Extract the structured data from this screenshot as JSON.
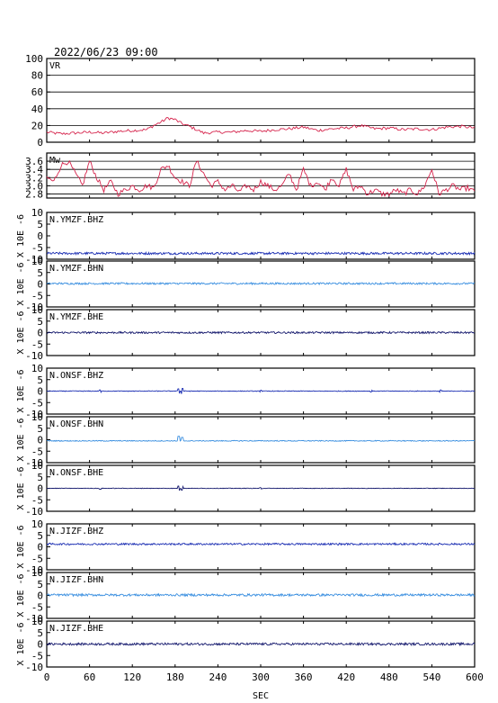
{
  "header": {
    "timestamp": "2022/06/23 09:00"
  },
  "chart_data": {
    "type": "line",
    "x_range": [
      0,
      600
    ],
    "x_ticks": [
      "0",
      "60",
      "120",
      "180",
      "240",
      "300",
      "360",
      "420",
      "480",
      "540",
      "600"
    ],
    "x_tick_values": [
      0,
      60,
      120,
      180,
      240,
      300,
      360,
      420,
      480,
      540,
      600
    ],
    "xlabel": "SEC",
    "y_unit_label": "X 10E -6",
    "panels": [
      {
        "id": "vr",
        "label": "VR",
        "ylim": [
          0,
          100
        ],
        "y_ticks": [
          "100",
          "80",
          "60",
          "40",
          "20",
          "0"
        ],
        "y_tick_values": [
          100,
          80,
          60,
          40,
          20,
          0
        ],
        "grid": true,
        "color": "#d6254d",
        "series": {
          "x": [
            0,
            20,
            40,
            60,
            80,
            100,
            120,
            140,
            150,
            160,
            170,
            180,
            190,
            200,
            210,
            220,
            240,
            260,
            280,
            300,
            320,
            340,
            360,
            380,
            400,
            420,
            440,
            460,
            480,
            500,
            520,
            540,
            560,
            580,
            600
          ],
          "y": [
            12,
            10,
            11,
            12,
            11,
            13,
            14,
            15,
            20,
            24,
            29,
            27,
            22,
            19,
            15,
            11,
            12,
            12,
            14,
            13,
            15,
            16,
            18,
            14,
            16,
            17,
            20,
            16,
            17,
            15,
            16,
            15,
            18,
            19,
            17
          ]
        }
      },
      {
        "id": "mw",
        "label": "Mw",
        "ylim": [
          2.7,
          3.8
        ],
        "y_ticks": [
          "3.6",
          "3.4",
          "3.2",
          "3.0",
          "2.8"
        ],
        "y_tick_values": [
          3.6,
          3.4,
          3.2,
          3.0,
          2.8
        ],
        "grid": true,
        "color": "#d6254d",
        "series": {
          "x": [
            0,
            10,
            20,
            30,
            40,
            50,
            60,
            70,
            80,
            90,
            100,
            110,
            120,
            130,
            140,
            150,
            160,
            170,
            180,
            190,
            200,
            210,
            220,
            230,
            240,
            250,
            260,
            270,
            280,
            290,
            300,
            310,
            320,
            330,
            340,
            350,
            360,
            370,
            380,
            390,
            400,
            410,
            420,
            430,
            440,
            450,
            460,
            470,
            480,
            490,
            500,
            510,
            520,
            530,
            540,
            550,
            560,
            570,
            580,
            590,
            600
          ],
          "y": [
            3.2,
            3.1,
            3.5,
            3.6,
            3.3,
            3.0,
            3.6,
            3.2,
            2.9,
            3.1,
            2.8,
            2.9,
            3.0,
            2.9,
            3.0,
            2.95,
            3.4,
            3.5,
            3.2,
            3.1,
            3.0,
            3.6,
            3.3,
            3.0,
            3.1,
            2.9,
            3.0,
            2.85,
            3.0,
            2.9,
            3.1,
            3.0,
            2.9,
            3.0,
            3.3,
            2.9,
            3.4,
            3.0,
            3.1,
            2.9,
            3.2,
            3.0,
            3.4,
            2.9,
            3.0,
            2.8,
            2.9,
            2.8,
            2.8,
            2.9,
            2.8,
            2.9,
            2.8,
            3.0,
            3.4,
            2.8,
            2.9,
            3.0,
            2.9,
            2.95,
            2.85
          ]
        }
      },
      {
        "id": "ymzf-bhz",
        "label": "N.YMZF.BHZ",
        "ylim": [
          -10,
          10
        ],
        "y_ticks": [
          "10",
          "5",
          "0",
          "-5",
          "-10"
        ],
        "y_tick_values": [
          10,
          5,
          0,
          -5,
          -10
        ],
        "grid": false,
        "color": "#1c2fb3",
        "baseline": -7.5,
        "amplitude": 0.5,
        "spikes": []
      },
      {
        "id": "ymzf-bhn",
        "label": "N.YMZF.BHN",
        "ylim": [
          -10,
          10
        ],
        "y_ticks": [
          "10",
          "5",
          "0",
          "-5",
          "-10"
        ],
        "y_tick_values": [
          10,
          5,
          0,
          -5,
          -10
        ],
        "grid": false,
        "color": "#3a8fe0",
        "baseline": 0.2,
        "amplitude": 0.4,
        "spikes": []
      },
      {
        "id": "ymzf-bhe",
        "label": "N.YMZF.BHE",
        "ylim": [
          -10,
          10
        ],
        "y_ticks": [
          "10",
          "5",
          "0",
          "-5",
          "-10"
        ],
        "y_tick_values": [
          10,
          5,
          0,
          -5,
          -10
        ],
        "grid": false,
        "color": "#161a6e",
        "baseline": 0.0,
        "amplitude": 0.4,
        "spikes": []
      },
      {
        "id": "onsf-bhz",
        "label": "N.ONSF.BHZ",
        "ylim": [
          -10,
          10
        ],
        "y_ticks": [
          "10",
          "5",
          "0",
          "-5",
          "-10"
        ],
        "y_tick_values": [
          10,
          5,
          0,
          -5,
          -10
        ],
        "grid": false,
        "color": "#1c2fb3",
        "baseline": 0.0,
        "amplitude": 0.15,
        "spikes": [
          [
            75,
            0.5
          ],
          [
            185,
            1.0
          ],
          [
            190,
            1.2
          ],
          [
            300,
            0.4
          ],
          [
            455,
            0.4
          ],
          [
            552,
            0.5
          ]
        ]
      },
      {
        "id": "onsf-bhn",
        "label": "N.ONSF.BHN",
        "ylim": [
          -10,
          10
        ],
        "y_ticks": [
          "10",
          "5",
          "0",
          "-5",
          "-10"
        ],
        "y_tick_values": [
          10,
          5,
          0,
          -5,
          -10
        ],
        "grid": false,
        "color": "#3a8fe0",
        "baseline": -0.5,
        "amplitude": 0.2,
        "spikes": [
          [
            185,
            2.0
          ],
          [
            190,
            1.5
          ]
        ]
      },
      {
        "id": "onsf-bhe",
        "label": "N.ONSF.BHE",
        "ylim": [
          -10,
          10
        ],
        "y_ticks": [
          "10",
          "5",
          "0",
          "-5",
          "-10"
        ],
        "y_tick_values": [
          10,
          5,
          0,
          -5,
          -10
        ],
        "grid": false,
        "color": "#161a6e",
        "baseline": 0.0,
        "amplitude": 0.12,
        "spikes": [
          [
            75,
            0.4
          ],
          [
            185,
            1.0
          ],
          [
            190,
            0.8
          ],
          [
            300,
            0.3
          ]
        ]
      },
      {
        "id": "jizf-bhz",
        "label": "N.JIZF.BHZ",
        "ylim": [
          -10,
          10
        ],
        "y_ticks": [
          "10",
          "5",
          "0",
          "-5",
          "-10"
        ],
        "y_tick_values": [
          10,
          5,
          0,
          -5,
          -10
        ],
        "grid": false,
        "color": "#1c2fb3",
        "baseline": 1.2,
        "amplitude": 0.4,
        "spikes": []
      },
      {
        "id": "jizf-bhn",
        "label": "N.JIZF.BHN",
        "ylim": [
          -10,
          10
        ],
        "y_ticks": [
          "10",
          "5",
          "0",
          "-5",
          "-10"
        ],
        "y_tick_values": [
          10,
          5,
          0,
          -5,
          -10
        ],
        "grid": false,
        "color": "#3a8fe0",
        "baseline": 0.2,
        "amplitude": 0.5,
        "spikes": []
      },
      {
        "id": "jizf-bhe",
        "label": "N.JIZF.BHE",
        "ylim": [
          -10,
          10
        ],
        "y_ticks": [
          "10",
          "5",
          "0",
          "-5",
          "-10"
        ],
        "y_tick_values": [
          10,
          5,
          0,
          -5,
          -10
        ],
        "grid": false,
        "color": "#161a6e",
        "baseline": 0.0,
        "amplitude": 0.5,
        "spikes": []
      }
    ]
  }
}
